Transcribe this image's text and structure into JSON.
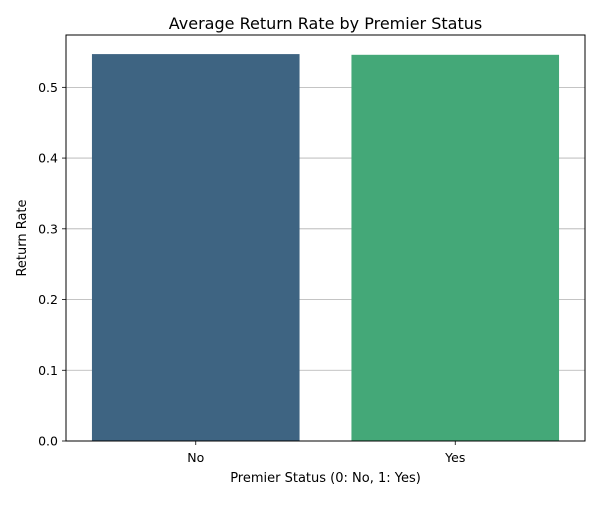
{
  "chart_data": {
    "type": "bar",
    "title": "Average Return Rate by Premier Status",
    "xlabel": "Premier Status (0: No, 1: Yes)",
    "ylabel": "Return Rate",
    "categories": [
      "No",
      "Yes"
    ],
    "values": [
      0.547,
      0.546
    ],
    "colors": [
      "#3e6482",
      "#44a878"
    ],
    "ylim": [
      0,
      0.574
    ],
    "yticks": [
      0.0,
      0.1,
      0.2,
      0.3,
      0.4,
      0.5
    ],
    "ytick_labels": [
      "0.0",
      "0.1",
      "0.2",
      "0.3",
      "0.4",
      "0.5"
    ],
    "grid": "horizontal",
    "legend": "none"
  }
}
